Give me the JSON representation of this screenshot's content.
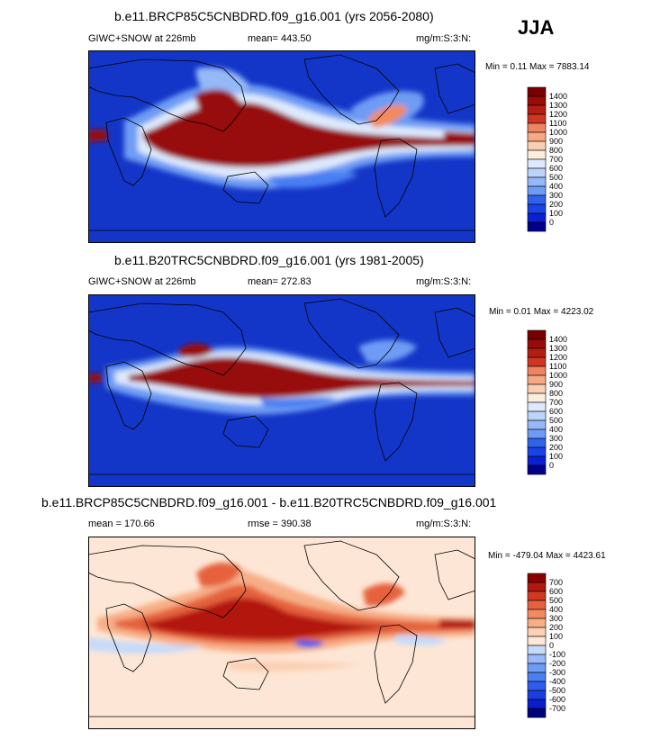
{
  "season": "JJA",
  "colors": {
    "pos_scale": [
      "#00008b",
      "#0a1fd2",
      "#1a43e6",
      "#2f62ef",
      "#4a7ff2",
      "#6e9cf4",
      "#95b8f7",
      "#bcd3fa",
      "#dde9fc",
      "#fbeedd",
      "#f9cfb1",
      "#f5a985",
      "#ee8461",
      "#e35d3f",
      "#d03622",
      "#b51c12",
      "#970b08",
      "#7a0000"
    ],
    "diff_scale": [
      "#00007a",
      "#0a1ccc",
      "#1a3fe0",
      "#2e5dec",
      "#4a7ff2",
      "#6e9cf4",
      "#9ab9f7",
      "#c6dafb",
      "#e6effd",
      "#fde8d7",
      "#fbd0b3",
      "#f7ae86",
      "#f18a61",
      "#e5623e",
      "#d13a22",
      "#b3170f",
      "#8a0000"
    ],
    "ocean_blue": "#1436c8",
    "diff_bg": "#fde6d5"
  },
  "panels": [
    {
      "title": "b.e11.BRCP85C5CNBDRD.f09_g16.001 (yrs 2056-2080)",
      "left_label": "GIWC+SNOW at 226mb",
      "center_label": "mean= 443.50",
      "right_label": "mg/m:S:3:N:",
      "minmax": "Min =   0.11 Max = 7883.14"
    },
    {
      "title": "b.e11.B20TRC5CNBDRD.f09_g16.001 (yrs 1981-2005)",
      "left_label": "GIWC+SNOW at 226mb",
      "center_label": "mean= 272.83",
      "right_label": "mg/m:S:3:N:",
      "minmax": "Min =   0.01 Max = 4223.02"
    },
    {
      "title": "b.e11.BRCP85C5CNBDRD.f09_g16.001 - b.e11.B20TRC5CNBDRD.f09_g16.001",
      "left_label": "mean = 170.66",
      "center_label": "rmse = 390.38",
      "right_label": "mg/m:S:3:N:",
      "minmax": "Min = -479.04 Max = 4423.61"
    }
  ],
  "chart_data": [
    {
      "type": "heatmap",
      "title": "b.e11.BRCP85C5CNBDRD.f09_g16.001 (yrs 2056-2080)",
      "variable": "GIWC+SNOW at 226mb",
      "units": "mg/m:S:3:N:",
      "mean": 443.5,
      "min": 0.11,
      "max": 7883.14,
      "colorbar_levels": [
        "1400",
        "1300",
        "1200",
        "1100",
        "1000",
        "900",
        "800",
        "700",
        "600",
        "500",
        "400",
        "300",
        "200",
        "100",
        "0"
      ]
    },
    {
      "type": "heatmap",
      "title": "b.e11.B20TRC5CNBDRD.f09_g16.001 (yrs 1981-2005)",
      "variable": "GIWC+SNOW at 226mb",
      "units": "mg/m:S:3:N:",
      "mean": 272.83,
      "min": 0.01,
      "max": 4223.02,
      "colorbar_levels": [
        "1400",
        "1300",
        "1200",
        "1100",
        "1000",
        "900",
        "800",
        "700",
        "600",
        "500",
        "400",
        "300",
        "200",
        "100",
        "0"
      ]
    },
    {
      "type": "heatmap",
      "title": "b.e11.BRCP85C5CNBDRD.f09_g16.001 - b.e11.B20TRC5CNBDRD.f09_g16.001",
      "units": "mg/m:S:3:N:",
      "mean": 170.66,
      "rmse": 390.38,
      "min": -479.04,
      "max": 4423.61,
      "colorbar_levels": [
        "700",
        "600",
        "500",
        "400",
        "300",
        "200",
        "100",
        "0",
        "-100",
        "-200",
        "-300",
        "-400",
        "-500",
        "-600",
        "-700"
      ]
    }
  ]
}
